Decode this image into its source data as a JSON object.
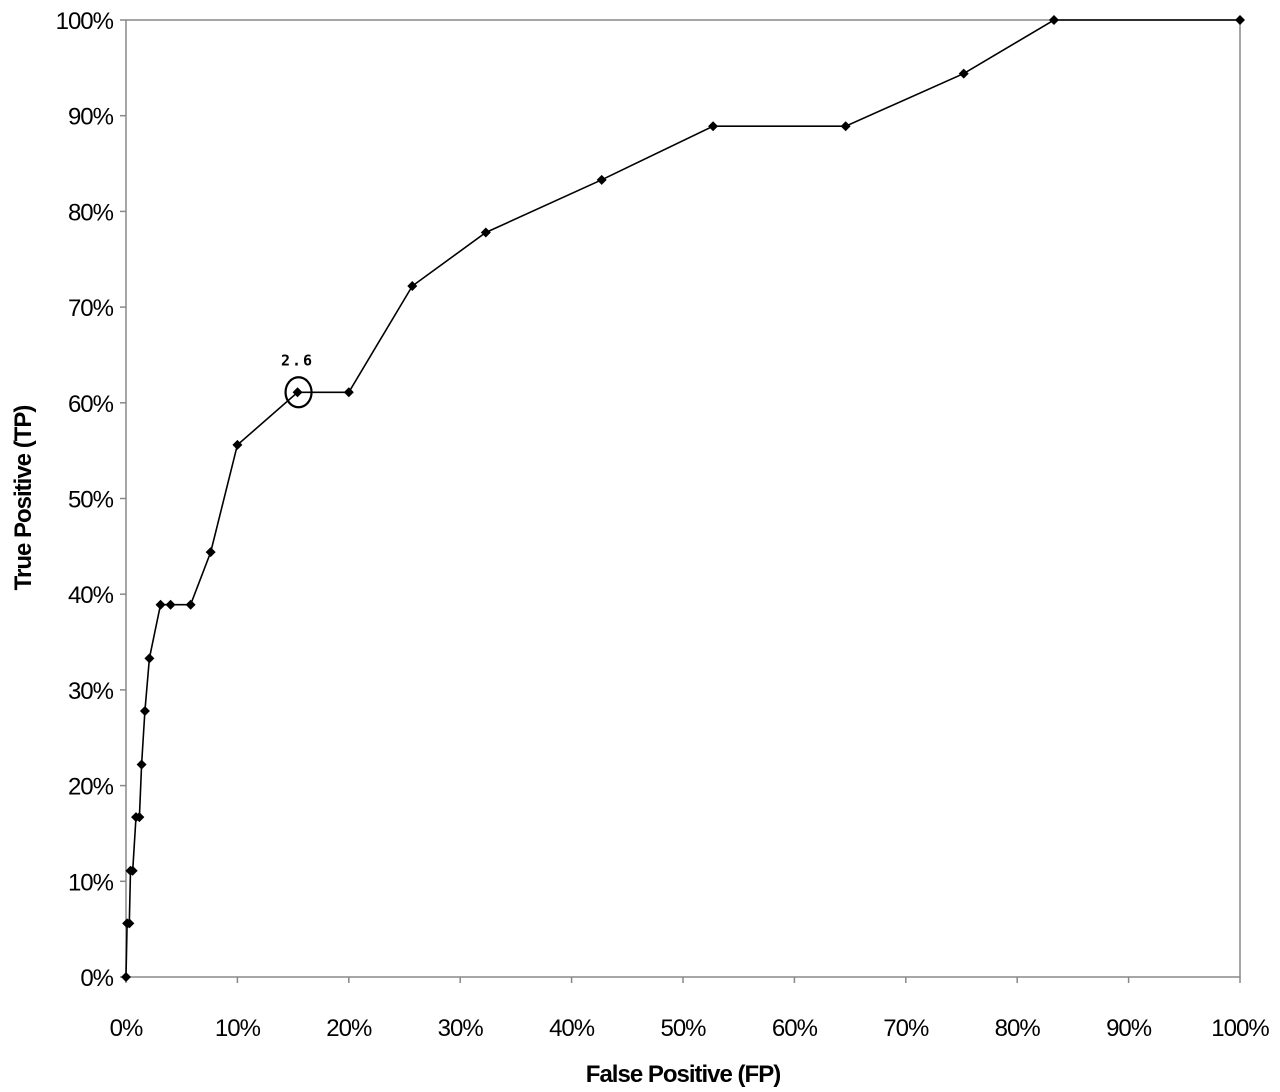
{
  "chart_data": {
    "type": "line",
    "xlabel": "False Positive (FP)",
    "ylabel": "True Positive (TP)",
    "xlim": [
      0,
      100
    ],
    "ylim": [
      0,
      100
    ],
    "x_ticks": [
      "0%",
      "10%",
      "20%",
      "30%",
      "40%",
      "50%",
      "60%",
      "70%",
      "80%",
      "90%",
      "100%"
    ],
    "y_ticks": [
      "0%",
      "10%",
      "20%",
      "30%",
      "40%",
      "50%",
      "60%",
      "70%",
      "80%",
      "90%",
      "100%"
    ],
    "grid": false,
    "series": [
      {
        "marker": "diamond",
        "color": "#000000",
        "points": [
          {
            "x": 0.0,
            "y": 0.0
          },
          {
            "x": 0.1,
            "y": 5.6
          },
          {
            "x": 0.3,
            "y": 5.6
          },
          {
            "x": 0.4,
            "y": 11.1
          },
          {
            "x": 0.6,
            "y": 11.1
          },
          {
            "x": 0.9,
            "y": 16.7
          },
          {
            "x": 1.2,
            "y": 16.7
          },
          {
            "x": 1.4,
            "y": 22.2
          },
          {
            "x": 1.7,
            "y": 27.8
          },
          {
            "x": 2.1,
            "y": 33.3
          },
          {
            "x": 3.1,
            "y": 38.9
          },
          {
            "x": 4.0,
            "y": 38.9
          },
          {
            "x": 5.8,
            "y": 38.9
          },
          {
            "x": 7.6,
            "y": 44.4
          },
          {
            "x": 10.0,
            "y": 55.6
          },
          {
            "x": 15.4,
            "y": 61.1
          },
          {
            "x": 20.0,
            "y": 61.1
          },
          {
            "x": 25.7,
            "y": 72.2
          },
          {
            "x": 32.3,
            "y": 77.8
          },
          {
            "x": 42.7,
            "y": 83.3
          },
          {
            "x": 52.7,
            "y": 88.9
          },
          {
            "x": 64.6,
            "y": 88.9
          },
          {
            "x": 75.2,
            "y": 94.4
          },
          {
            "x": 83.3,
            "y": 100.0
          },
          {
            "x": 100.0,
            "y": 100.0
          }
        ]
      }
    ],
    "annotations": [
      {
        "text": "2.6",
        "x": 15.4,
        "y": 61.1,
        "circled": true
      }
    ]
  }
}
